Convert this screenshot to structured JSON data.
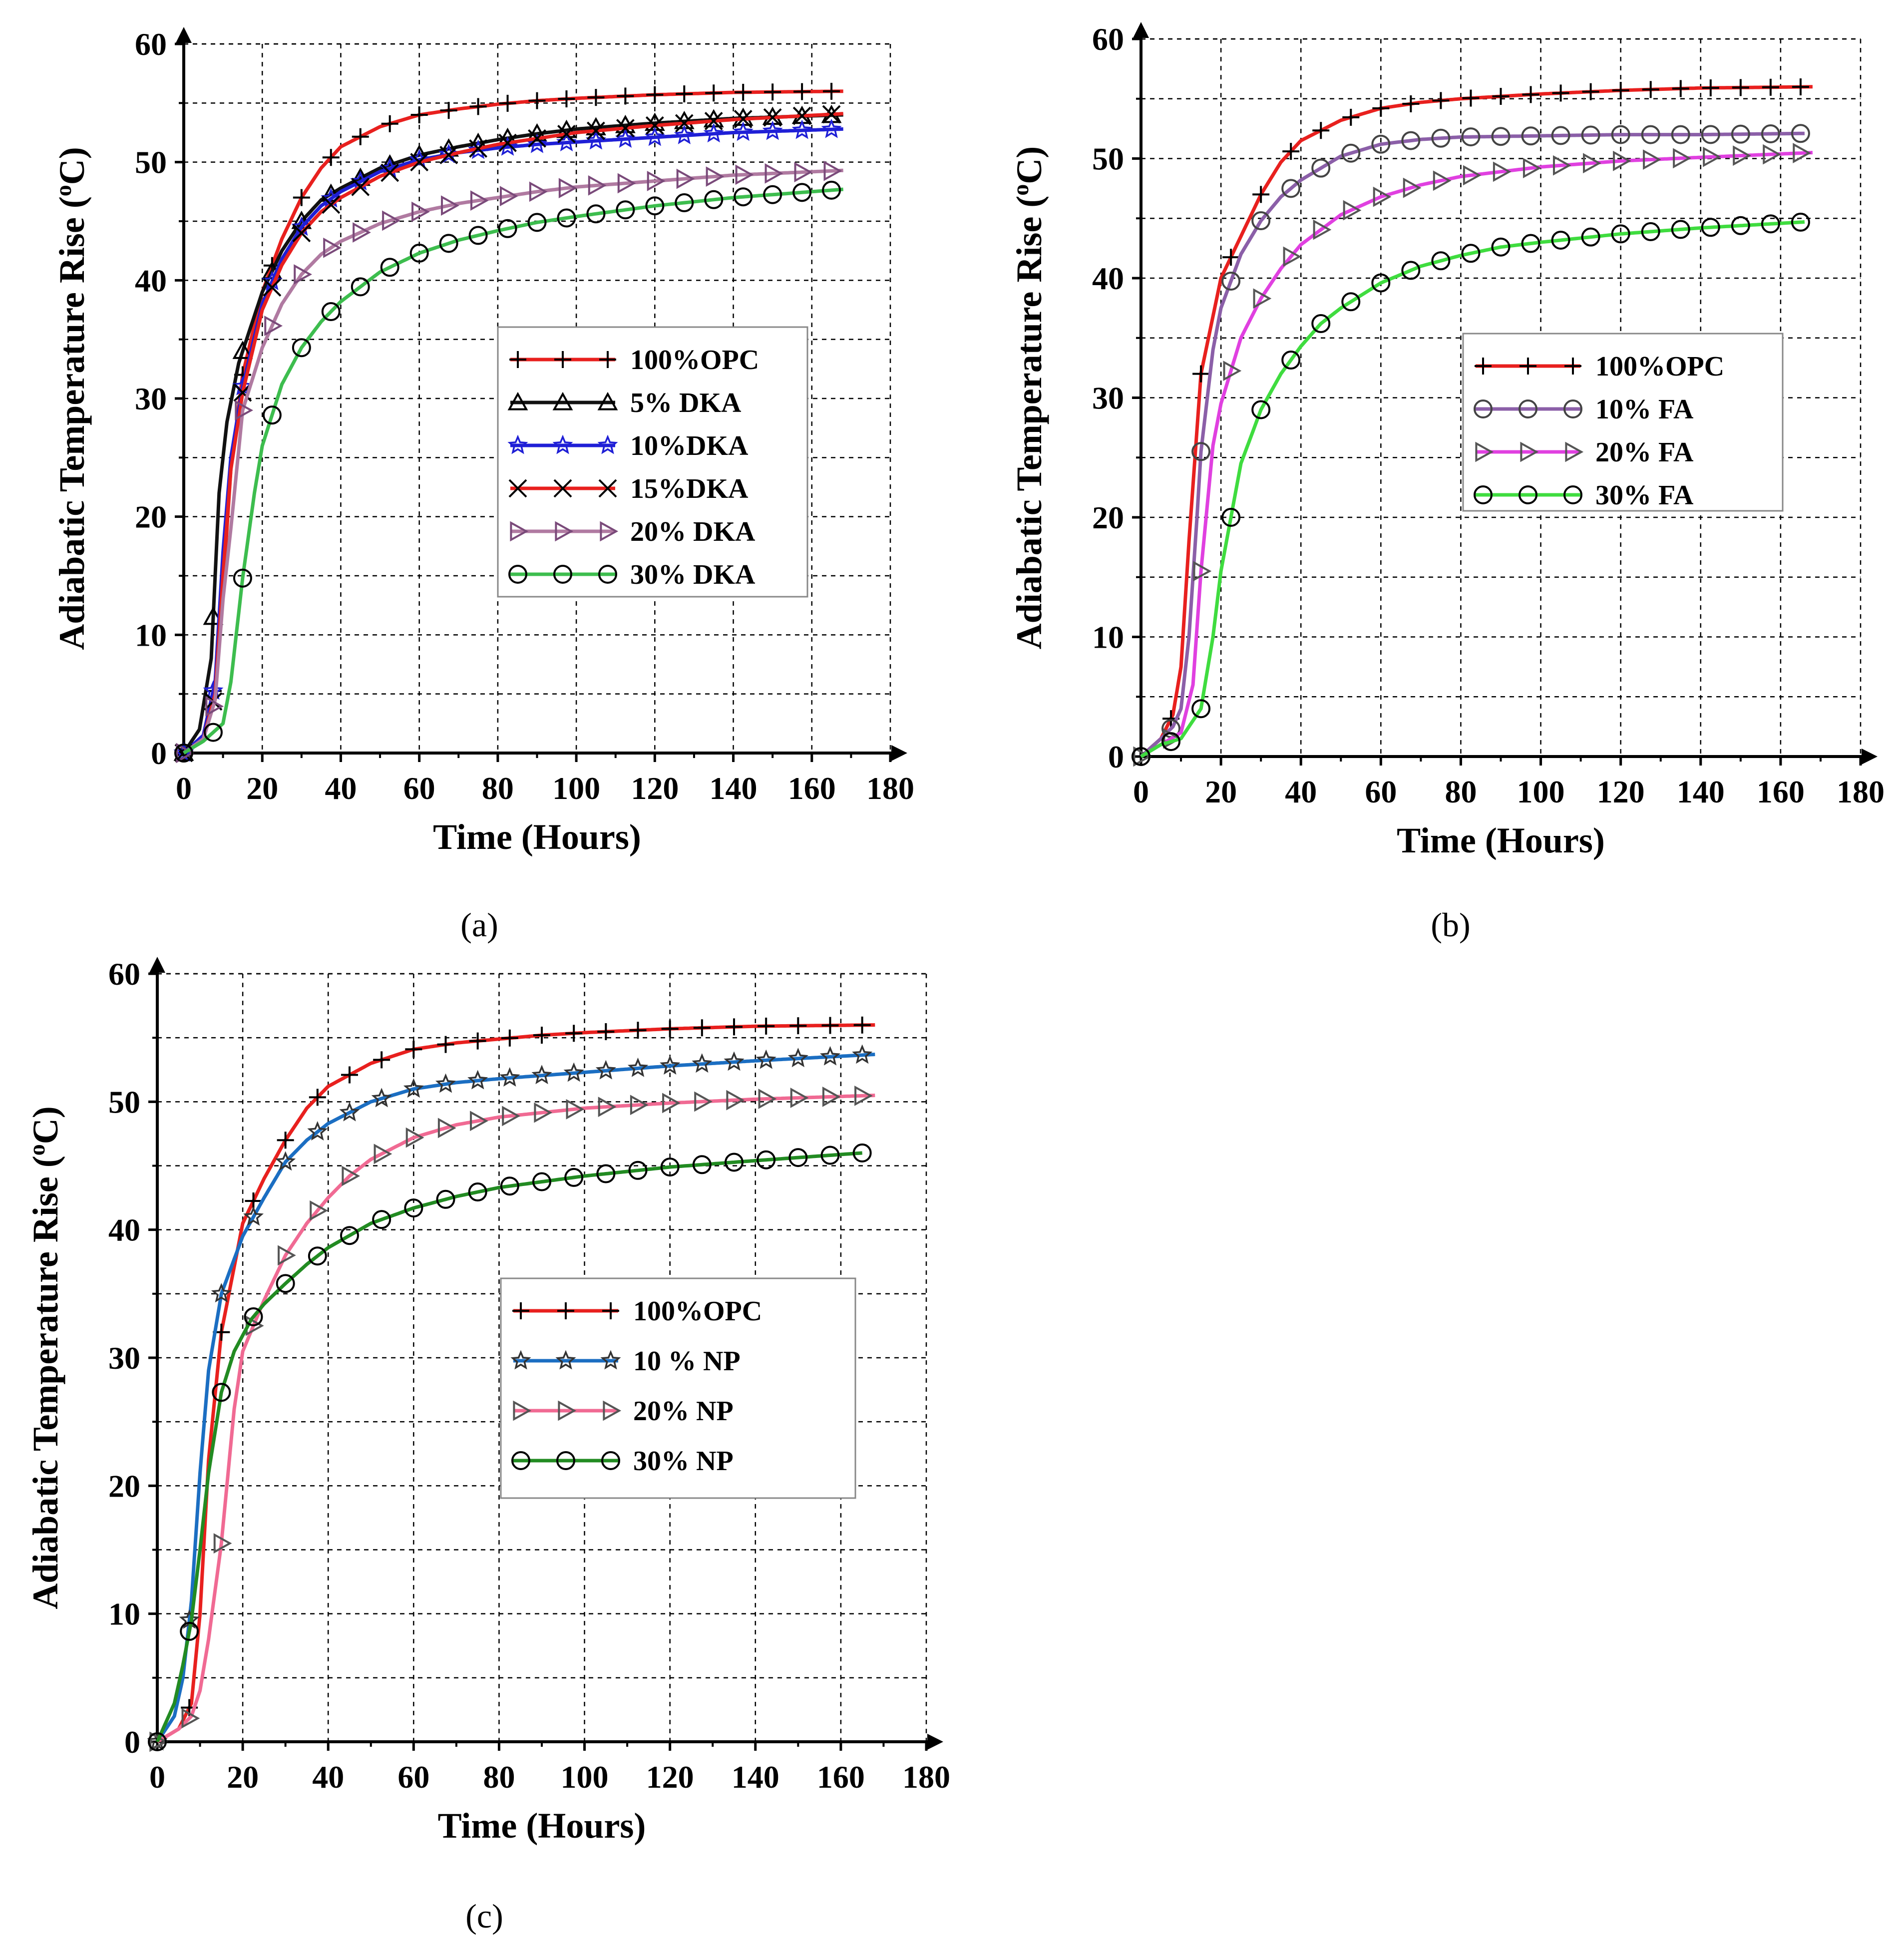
{
  "chart_data": [
    {
      "type": "line",
      "panel_label": "(a)",
      "xlabel": "Time (Hours)",
      "ylabel": "Adiabatic Temperature Rise (",
      "ylabel_sup": "o",
      "ylabel_end": "C)",
      "xlim": [
        0,
        180
      ],
      "ylim": [
        0,
        60
      ],
      "xticks": [
        "0",
        "20",
        "40",
        "60",
        "80",
        "100",
        "120",
        "140",
        "160",
        "180"
      ],
      "yticks": [
        "0",
        "10",
        "20",
        "30",
        "40",
        "50",
        "60"
      ],
      "grid": true,
      "legend_position": "center-right",
      "series": [
        {
          "name": "100%OPC",
          "color": "#e8201e",
          "marker": "plus",
          "marker_color": "#000000",
          "x": [
            0,
            5,
            8,
            10,
            12,
            15,
            20,
            25,
            30,
            35,
            40,
            50,
            60,
            70,
            80,
            90,
            100,
            120,
            140,
            168
          ],
          "y": [
            0,
            1.5,
            6,
            14,
            24,
            32,
            39,
            43.5,
            47,
            49.5,
            51.3,
            53,
            54,
            54.5,
            54.9,
            55.2,
            55.4,
            55.7,
            55.9,
            56
          ]
        },
        {
          "name": "5% DKA",
          "color": "#111111",
          "marker": "triangle",
          "marker_color": "#000000",
          "x": [
            0,
            4,
            7,
            9,
            11,
            14,
            20,
            25,
            30,
            35,
            40,
            50,
            60,
            70,
            80,
            90,
            100,
            120,
            140,
            168
          ],
          "y": [
            0,
            2,
            8,
            22,
            28,
            33,
            39,
            42.5,
            45,
            46.8,
            47.8,
            49.5,
            50.6,
            51.3,
            51.9,
            52.4,
            52.8,
            53.3,
            53.7,
            54
          ]
        },
        {
          "name": "10%DKA",
          "color": "#1f1fd6",
          "marker": "star",
          "marker_color": "#1f1fd6",
          "x": [
            0,
            5,
            8,
            10,
            12,
            15,
            20,
            25,
            30,
            35,
            40,
            50,
            60,
            70,
            80,
            90,
            100,
            120,
            140,
            168
          ],
          "y": [
            0,
            1.5,
            6,
            17,
            25,
            31,
            38,
            41.8,
            44.5,
            46.3,
            47.5,
            49.2,
            50.2,
            50.8,
            51.2,
            51.5,
            51.7,
            52.1,
            52.5,
            52.8
          ]
        },
        {
          "name": "15%DKA",
          "color": "#e8201e",
          "marker": "cross",
          "marker_color": "#000000",
          "x": [
            0,
            5,
            8,
            10,
            12,
            15,
            20,
            25,
            30,
            35,
            40,
            50,
            60,
            70,
            80,
            90,
            100,
            120,
            140,
            168
          ],
          "y": [
            0,
            1.2,
            5,
            15,
            24,
            30.5,
            37.5,
            41.3,
            44,
            45.8,
            47,
            48.8,
            50,
            50.8,
            51.5,
            52,
            52.5,
            53.1,
            53.6,
            54.1
          ]
        },
        {
          "name": "20% DKA",
          "color": "#b07aa1",
          "marker": "triangle-right",
          "marker_color": "#7a4a7a",
          "x": [
            0,
            5,
            8,
            10,
            12,
            15,
            20,
            25,
            30,
            35,
            40,
            50,
            60,
            70,
            80,
            90,
            100,
            120,
            140,
            168
          ],
          "y": [
            0,
            1.2,
            4.5,
            13,
            19,
            29,
            34.3,
            38,
            40.5,
            42.2,
            43.3,
            44.8,
            45.8,
            46.5,
            47,
            47.5,
            47.9,
            48.4,
            48.9,
            49.3
          ]
        },
        {
          "name": "30% DKA",
          "color": "#3dbd4e",
          "marker": "circle",
          "marker_color": "#000000",
          "x": [
            0,
            5,
            10,
            12,
            15,
            18,
            20,
            25,
            30,
            35,
            40,
            50,
            60,
            70,
            80,
            90,
            100,
            120,
            140,
            168
          ],
          "y": [
            0,
            1,
            2.5,
            6,
            14.8,
            22,
            26,
            31.2,
            34.3,
            36.5,
            38.2,
            40.7,
            42.3,
            43.4,
            44.2,
            44.9,
            45.4,
            46.3,
            47,
            47.7
          ]
        }
      ]
    },
    {
      "type": "line",
      "panel_label": "(b)",
      "xlabel": "Time (Hours)",
      "ylabel": "Adiabatic Temperature Rise (",
      "ylabel_sup": "o",
      "ylabel_end": "C)",
      "xlim": [
        0,
        180
      ],
      "ylim": [
        0,
        60
      ],
      "xticks": [
        "0",
        "20",
        "40",
        "60",
        "80",
        "100",
        "120",
        "140",
        "160",
        "180"
      ],
      "yticks": [
        "0",
        "10",
        "20",
        "30",
        "40",
        "50",
        "60"
      ],
      "grid": true,
      "legend_position": "center-right",
      "series": [
        {
          "name": "100%OPC",
          "color": "#e8201e",
          "marker": "plus",
          "marker_color": "#000000",
          "x": [
            0,
            5,
            8,
            10,
            12,
            15,
            20,
            25,
            30,
            35,
            40,
            50,
            60,
            70,
            80,
            90,
            100,
            120,
            140,
            168
          ],
          "y": [
            0,
            1.5,
            3.5,
            7.5,
            18,
            32,
            40,
            43.5,
            47,
            49.7,
            51.5,
            53.2,
            54.2,
            54.7,
            55,
            55.2,
            55.4,
            55.7,
            55.9,
            56
          ]
        },
        {
          "name": "10% FA",
          "color": "#8b5fa8",
          "marker": "circle",
          "marker_color": "#444444",
          "x": [
            0,
            5,
            8,
            10,
            12,
            14,
            15,
            18,
            20,
            25,
            30,
            35,
            40,
            50,
            60,
            70,
            80,
            100,
            120,
            140,
            166
          ],
          "y": [
            0,
            1.5,
            2.5,
            4,
            10,
            20,
            25.5,
            34,
            37.5,
            42,
            44.8,
            46.8,
            48.2,
            50.2,
            51.2,
            51.6,
            51.8,
            51.9,
            52,
            52,
            52.1
          ]
        },
        {
          "name": "20% FA",
          "color": "#e040e0",
          "marker": "triangle-right",
          "marker_color": "#555555",
          "x": [
            0,
            5,
            10,
            13,
            15,
            18,
            20,
            25,
            30,
            35,
            40,
            50,
            60,
            70,
            80,
            100,
            120,
            140,
            168
          ],
          "y": [
            0,
            1,
            2,
            6,
            15.5,
            26,
            29.5,
            35,
            38.3,
            40.8,
            42.8,
            45.3,
            46.8,
            47.8,
            48.5,
            49.3,
            49.8,
            50.1,
            50.5
          ]
        },
        {
          "name": "30% FA",
          "color": "#3fdc3f",
          "marker": "circle",
          "marker_color": "#000000",
          "x": [
            0,
            5,
            10,
            15,
            18,
            20,
            25,
            30,
            35,
            40,
            45,
            50,
            60,
            70,
            80,
            90,
            100,
            120,
            140,
            166
          ],
          "y": [
            0,
            1,
            1.5,
            4,
            10,
            15.5,
            24.5,
            29,
            32,
            34.3,
            36.2,
            37.5,
            39.6,
            41,
            41.9,
            42.6,
            43,
            43.7,
            44.2,
            44.7
          ]
        }
      ]
    },
    {
      "type": "line",
      "panel_label": "(c)",
      "xlabel": "Time (Hours)",
      "ylabel": "Adiabatic Temperature Rise (",
      "ylabel_sup": "o",
      "ylabel_end": "C)",
      "xlim": [
        0,
        180
      ],
      "ylim": [
        0,
        60
      ],
      "xticks": [
        "0",
        "20",
        "40",
        "60",
        "80",
        "100",
        "120",
        "140",
        "160",
        "180"
      ],
      "yticks": [
        "0",
        "10",
        "20",
        "30",
        "40",
        "50",
        "60"
      ],
      "grid": true,
      "legend_position": "center-right",
      "series": [
        {
          "name": "100%OPC",
          "color": "#e8201e",
          "marker": "plus",
          "marker_color": "#000000",
          "x": [
            0,
            5,
            8,
            10,
            12,
            15,
            20,
            25,
            30,
            35,
            40,
            50,
            60,
            70,
            80,
            90,
            100,
            120,
            140,
            168
          ],
          "y": [
            0,
            1,
            3,
            10,
            22,
            32,
            40.5,
            44,
            47,
            49.5,
            51.2,
            53,
            54.1,
            54.6,
            54.9,
            55.2,
            55.4,
            55.7,
            55.9,
            56
          ]
        },
        {
          "name": "10 % NP",
          "color": "#1b6ec2",
          "marker": "star",
          "marker_color": "#333333",
          "x": [
            0,
            4,
            6,
            8,
            10,
            12,
            15,
            20,
            25,
            30,
            35,
            40,
            50,
            60,
            70,
            80,
            100,
            120,
            140,
            168
          ],
          "y": [
            0,
            2,
            5,
            11,
            21,
            29,
            35,
            39.5,
            42.5,
            45.3,
            47,
            48.3,
            50,
            51,
            51.5,
            51.8,
            52.3,
            52.8,
            53.2,
            53.7
          ]
        },
        {
          "name": "20% NP",
          "color": "#f06a93",
          "marker": "triangle-right",
          "marker_color": "#555555",
          "x": [
            0,
            5,
            8,
            10,
            12,
            15,
            18,
            20,
            25,
            30,
            35,
            40,
            45,
            50,
            60,
            70,
            80,
            100,
            120,
            140,
            168
          ],
          "y": [
            0,
            1,
            2,
            4,
            8,
            15.5,
            26,
            30.5,
            34.5,
            38,
            40.5,
            42.5,
            44.2,
            45.5,
            47.2,
            48.2,
            48.8,
            49.5,
            49.9,
            50.2,
            50.5
          ]
        },
        {
          "name": "30% NP",
          "color": "#228b22",
          "marker": "circle",
          "marker_color": "#000000",
          "x": [
            0,
            4,
            6,
            8,
            10,
            12,
            15,
            18,
            22,
            25,
            30,
            35,
            40,
            50,
            60,
            70,
            80,
            100,
            120,
            140,
            165
          ],
          "y": [
            0,
            3,
            6,
            9.5,
            15,
            21,
            27.3,
            30.5,
            33,
            34.2,
            35.8,
            37.3,
            38.6,
            40.5,
            41.7,
            42.6,
            43.3,
            44.2,
            44.9,
            45.4,
            46
          ]
        }
      ]
    }
  ]
}
